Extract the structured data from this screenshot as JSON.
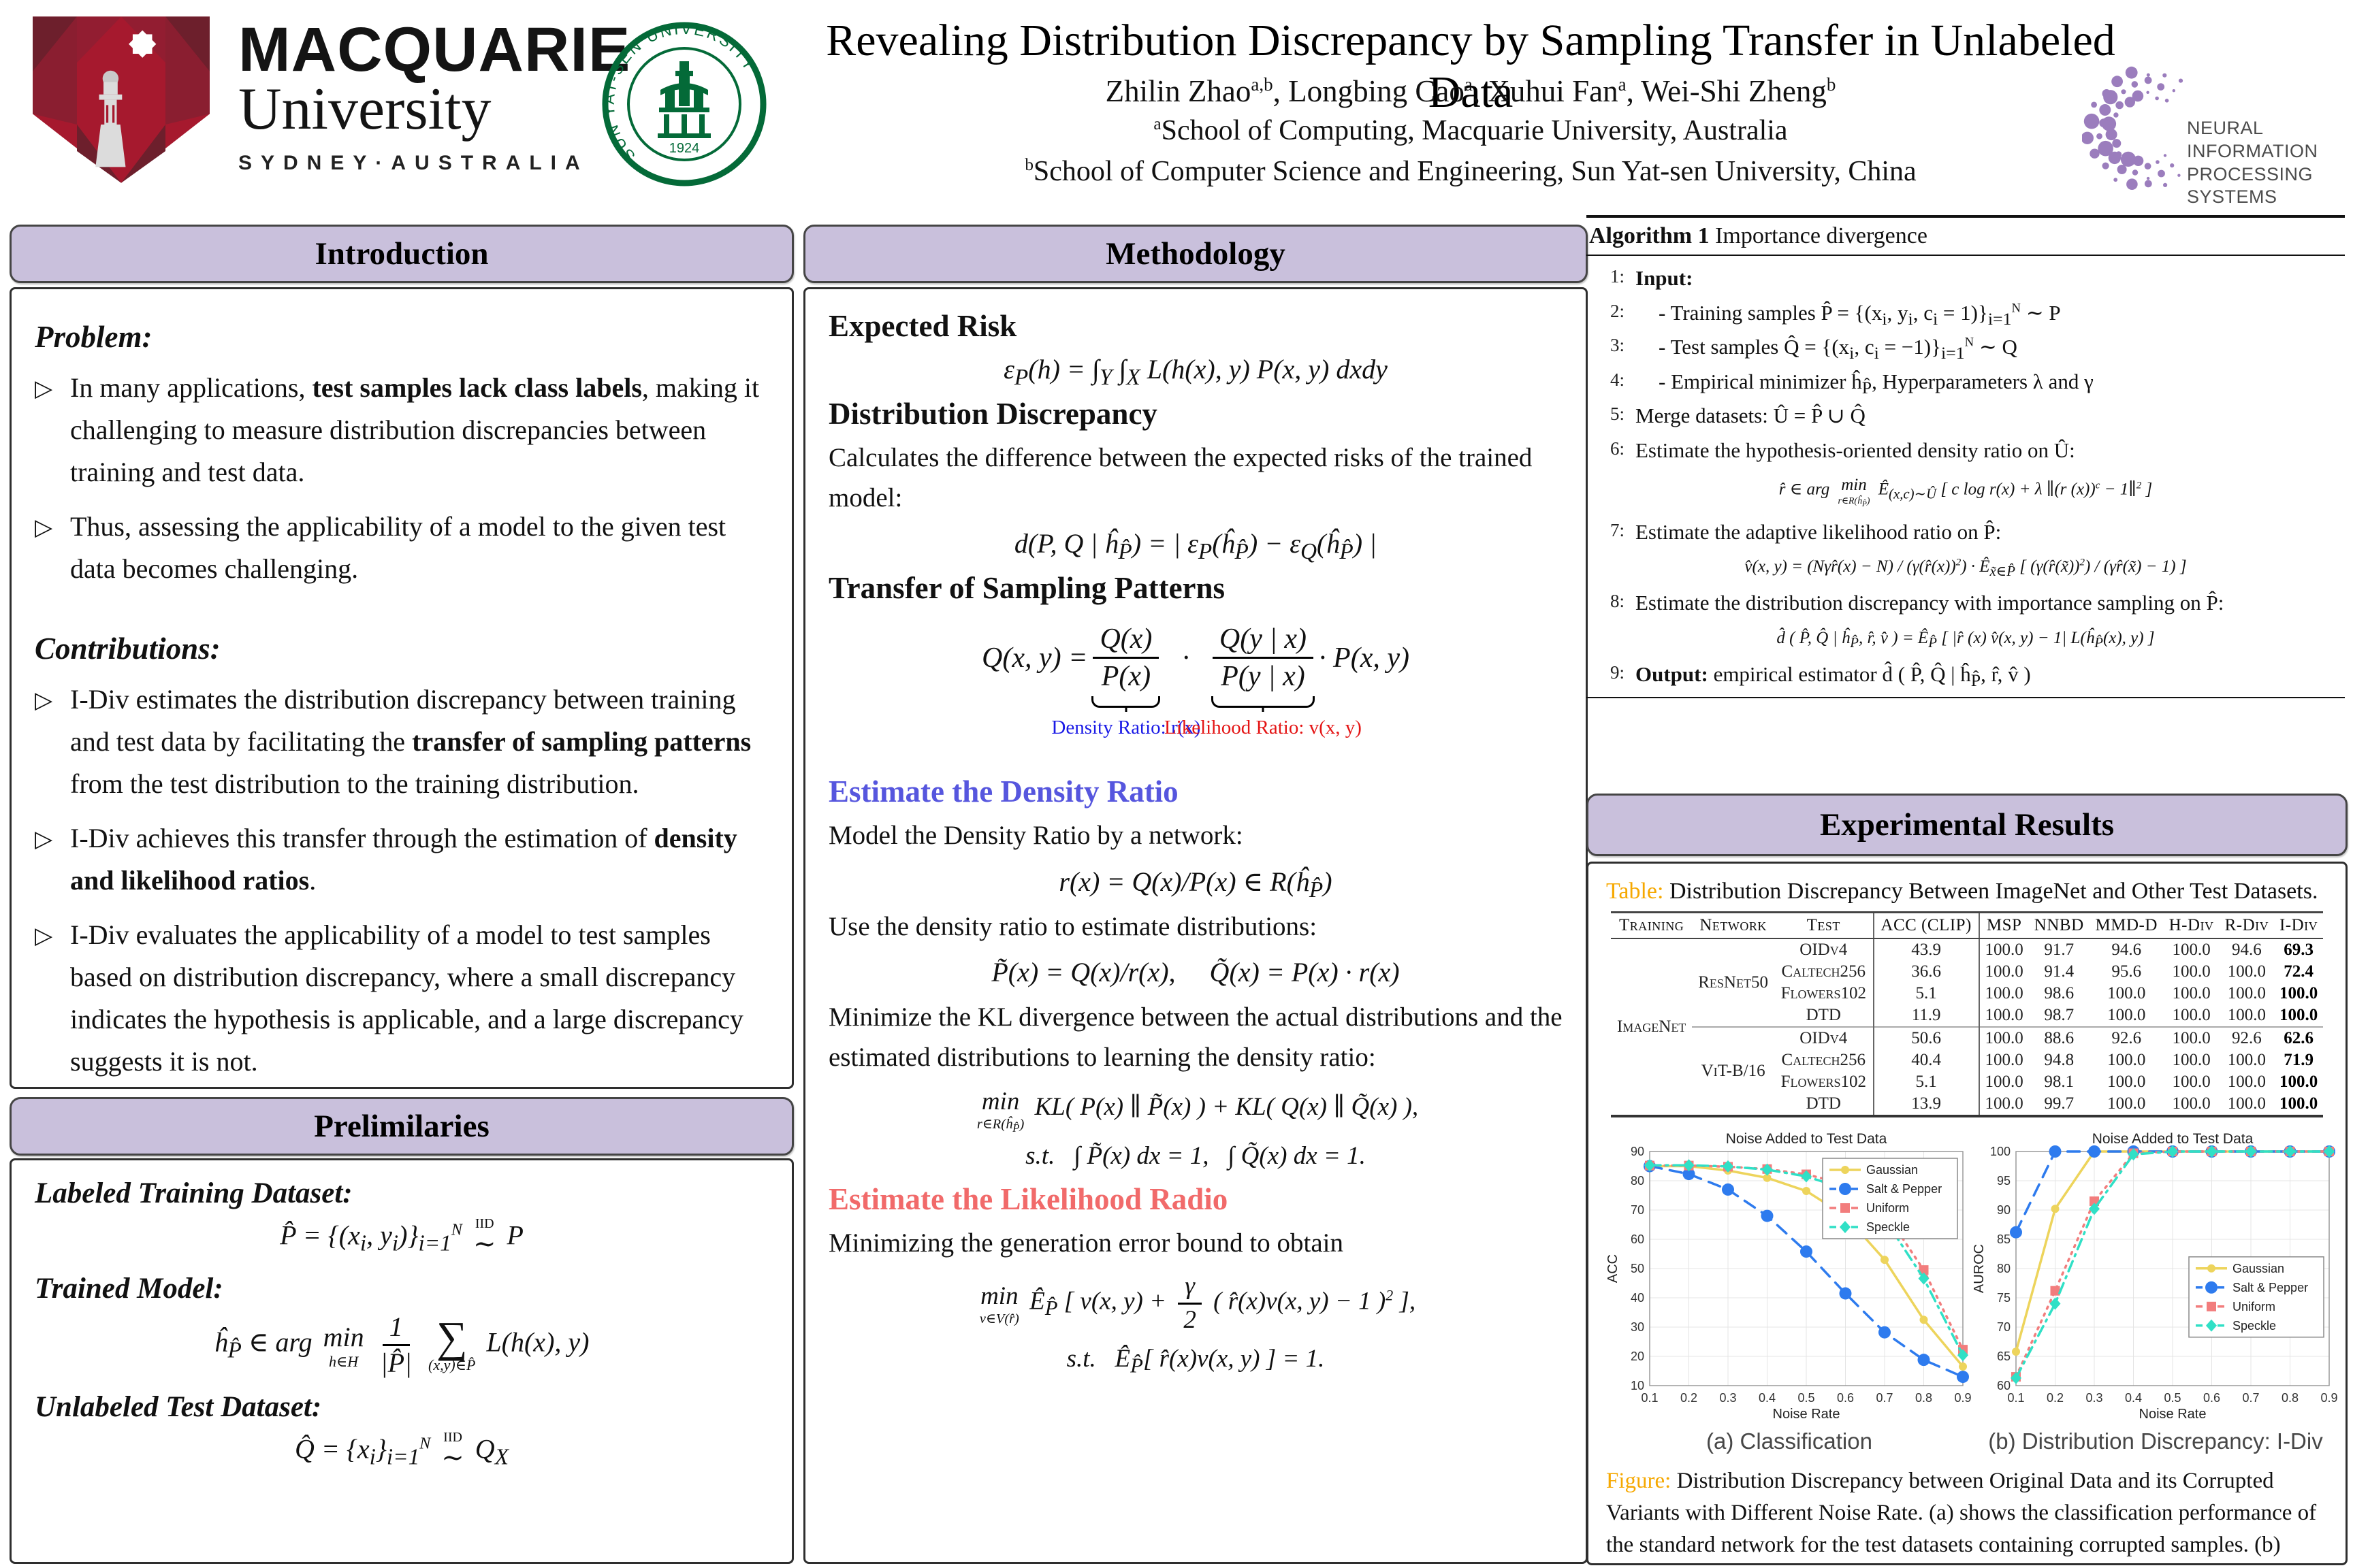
{
  "header": {
    "title": "Revealing Distribution Discrepancy by Sampling Transfer in Unlabeled Data",
    "authors": [
      {
        "t": "Zhilin Zhao"
      },
      {
        "sup": "a,b"
      },
      {
        "t": ", Longbing Cao"
      },
      {
        "sup": "a"
      },
      {
        "t": ", Xuhui Fan"
      },
      {
        "sup": "a"
      },
      {
        "t": ", Wei-Shi Zheng"
      },
      {
        "sup": "b"
      }
    ],
    "affil_a": [
      {
        "sup": "a"
      },
      {
        "t": "School of Computing, Macquarie University, Australia"
      }
    ],
    "affil_b": [
      {
        "sup": "b"
      },
      {
        "t": "School of Computer Science and Engineering, Sun Yat-sen University, China"
      }
    ],
    "macquarie": {
      "line1": "MACQUARIE",
      "line2": "University",
      "line3": "SYDNEY·AUSTRALIA",
      "brand_red": "#a6192e",
      "brand_dark": "#6d1f2c"
    },
    "sysu": {
      "name": "SUN YAT-SEN UNIVERSITY",
      "year": "1924",
      "green": "#046a38"
    },
    "neurips": {
      "line1": "NEURAL INFORMATION",
      "line2": "PROCESSING SYSTEMS",
      "purple": "#9b7dbd"
    }
  },
  "sections": {
    "introduction": "Introduction",
    "methodology": "Methodology",
    "preliminaries": "Prelimilaries",
    "experimental": "Experimental Results"
  },
  "intro": {
    "problem_heading": "Problem:",
    "problem_bullets": [
      [
        {
          "t": "In many applications, "
        },
        {
          "t": "test samples lack class labels",
          "b": 1
        },
        {
          "t": ", making it challenging to measure distribution discrepancies between training and test data."
        }
      ],
      [
        {
          "t": "Thus, assessing the applicability of a model to the given test data becomes challenging."
        }
      ]
    ],
    "contrib_heading": "Contributions:",
    "contrib_bullets": [
      [
        {
          "t": "I-Div estimates the distribution discrepancy between training and test data by facilitating the "
        },
        {
          "t": "transfer of sampling patterns",
          "b": 1
        },
        {
          "t": " from the test distribution to the training distribution."
        }
      ],
      [
        {
          "t": "I-Div achieves this transfer through the estimation of "
        },
        {
          "t": "density and likelihood ratios",
          "b": 1
        },
        {
          "t": "."
        }
      ],
      [
        {
          "t": "I-Div evaluates the applicability of a model to test samples based on distribution discrepancy, where a small discrepancy indicates the hypothesis is applicable, and a large discrepancy suggests it is not."
        }
      ]
    ]
  },
  "prelim": {
    "label1": "Labeled Training Dataset:",
    "eq1": "P̂ = {(x_{i}, y_{i})}_{i=1}^{N} \\o{IID}{∼} P",
    "label2": "Trained Model:",
    "eq2": "ĥ_{P̂} ∈ arg \\u{min}{h∈H} \\f{1}{|P̂|} \\u{∑}{(x,y)∈P̂} L(h(x), y)",
    "label3": "Unlabeled Test Dataset:",
    "eq3": "Q̂ = {x_{i}}_{i=1}^{N} \\o{IID}{∼} Q_{X}"
  },
  "method": {
    "h_risk": "Expected Risk",
    "eq_risk": "ε_{P}(h) = ∫_{Y} ∫_{X} L(h(x), y) P(x, y) dxdy",
    "h_disc": "Distribution Discrepancy",
    "t_disc": "Calculates the difference between the expected risks of the trained model:",
    "eq_disc": "d(P, Q | ĥ_{P̂}) = | ε_{P}(ĥ_{P̂}) − ε_{Q}(ĥ_{P̂}) |",
    "h_transfer": "Transfer of Sampling Patterns",
    "transfer": {
      "lhs": "Q(x, y) =",
      "f1num": "Q(x)",
      "f1den": "P(x)",
      "f1label": "Density Ratio: r(x)",
      "f1color": "#1a1ae6",
      "dot": "·",
      "f2num": "Q(y | x)",
      "f2den": "P(y | x)",
      "f2label": "Likelihood Ratio: v(x, y)",
      "f2color": "#e41414",
      "rhs": "· P(x, y)"
    },
    "h_density": "Estimate the Density Ratio",
    "t_model": "Model the Density Ratio by a network:",
    "eq_ratio": "r(x) = Q(x)/P(x) ∈ R(ĥ_{P̂})",
    "t_use": "Use the density ratio to estimate distributions:",
    "eq_tilde": "P̃(x) = Q(x)/r(x),  Q̃(x) = P(x) · r(x)",
    "t_kl": "Minimize the KL divergence between the actual distributions and the estimated distributions to learning the density ratio:",
    "eq_kl": "\\u{min}{r∈R(ĥ_{P̂})} KL( P(x) ∥ P̃(x) ) + KL( Q(x) ∥ Q̃(x) ),",
    "eq_kl_st": "s.t.  ∫ P̃(x) dx = 1,  ∫ Q̃(x) dx = 1.",
    "h_likelihood": "Estimate the Likelihood Radio",
    "t_gen": "Minimizing the generation error bound to obtain",
    "eq_gen": "\\u{min}{v∈V(r̂)} Ê_{P̂} [ v(x, y) + \\f{γ}{2} ( r̂(x)v(x, y) − 1 )^{2} ],",
    "eq_gen_st": "s.t.  Ê_{P̂}[ r̂(x)v(x, y) ] = 1."
  },
  "algorithm": {
    "title_bold": "Algorithm 1",
    "title_rest": " Importance divergence",
    "lines": [
      {
        "n": "1:",
        "math": "\\b{Input:}"
      },
      {
        "n": "2:",
        "ind": 1,
        "math": "- Training samples P̂ = {(x_{i}, y_{i}, c_{i} = 1)}_{i=1}^{N} ∼ P"
      },
      {
        "n": "3:",
        "ind": 1,
        "math": "- Test samples Q̂ = {(x_{i}, c_{i} = −1)}_{i=1}^{N} ∼ Q"
      },
      {
        "n": "4:",
        "ind": 1,
        "math": "- Empirical minimizer ĥ_{P̂}, Hyperparameters λ and γ"
      },
      {
        "n": "5:",
        "math": "Merge datasets: Û = P̂ ∪ Q̂"
      },
      {
        "n": "6:",
        "math": "Estimate the hypothesis-oriented density ratio on Û:"
      },
      {
        "eq": "r̂ ∈ arg \\u{min}{r∈R(ĥ_{P̂})} Ê_{(x,c)∼Û} [ c log r(x) + λ ∥(r (x))^{c} − 1∥^{2} ]"
      },
      {
        "n": "7:",
        "math": "Estimate the adaptive likelihood ratio on P̂:"
      },
      {
        "eq": "v̂(x, y) = (Nγr̂(x) − N) / (γ(r̂(x))^{2}) · Ê_{x̃∈P̂} [ (γ(r̂(x̃))^{2}) / (γr̂(x̃) − 1) ]"
      },
      {
        "n": "8:",
        "math": "Estimate the distribution discrepancy with importance sampling on P̂:"
      },
      {
        "eq": "d̂ ( P̂, Q̂ | ĥ_{P̂}, r̂, v̂ ) = Ê_{P̂} [ |r̂ (x) v̂(x, y) − 1| L(ĥ_{P̂}(x), y) ]"
      },
      {
        "n": "9:",
        "math": "\\b{Output:} empirical estimator d̂ ( P̂, Q̂ | ĥ_{P̂}, r̂, v̂ )"
      }
    ]
  },
  "results": {
    "table_title": [
      {
        "t": "Table:",
        "c": "#f6a800"
      },
      {
        "t": " Distribution Discrepancy Between ImageNet and Other Test Datasets."
      }
    ],
    "columns": [
      "Training",
      "Network",
      "Test",
      "ACC (CLIP)",
      "MSP",
      "NNBD",
      "MMD-D",
      "H-Div",
      "R-Div",
      "I-Div"
    ],
    "training": "ImageNet",
    "groups": [
      {
        "network": "ResNet50",
        "rows": [
          {
            "test": "OIDv4",
            "acc": "43.9",
            "msp": "100.0",
            "nnbd": "91.7",
            "mmdd": "94.6",
            "hdiv": "100.0",
            "rdiv": "94.6",
            "idiv": "69.3"
          },
          {
            "test": "Caltech256",
            "acc": "36.6",
            "msp": "100.0",
            "nnbd": "91.4",
            "mmdd": "95.6",
            "hdiv": "100.0",
            "rdiv": "100.0",
            "idiv": "72.4"
          },
          {
            "test": "Flowers102",
            "acc": "5.1",
            "msp": "100.0",
            "nnbd": "98.6",
            "mmdd": "100.0",
            "hdiv": "100.0",
            "rdiv": "100.0",
            "idiv": "100.0"
          },
          {
            "test": "DTD",
            "acc": "11.9",
            "msp": "100.0",
            "nnbd": "98.7",
            "mmdd": "100.0",
            "hdiv": "100.0",
            "rdiv": "100.0",
            "idiv": "100.0"
          }
        ]
      },
      {
        "network": "ViT-B/16",
        "rows": [
          {
            "test": "OIDv4",
            "acc": "50.6",
            "msp": "100.0",
            "nnbd": "88.6",
            "mmdd": "92.6",
            "hdiv": "100.0",
            "rdiv": "92.6",
            "idiv": "62.6"
          },
          {
            "test": "Caltech256",
            "acc": "40.4",
            "msp": "100.0",
            "nnbd": "94.8",
            "mmdd": "100.0",
            "hdiv": "100.0",
            "rdiv": "100.0",
            "idiv": "71.9"
          },
          {
            "test": "Flowers102",
            "acc": "5.1",
            "msp": "100.0",
            "nnbd": "98.1",
            "mmdd": "100.0",
            "hdiv": "100.0",
            "rdiv": "100.0",
            "idiv": "100.0"
          },
          {
            "test": "DTD",
            "acc": "13.9",
            "msp": "100.0",
            "nnbd": "99.7",
            "mmdd": "100.0",
            "hdiv": "100.0",
            "rdiv": "100.0",
            "idiv": "100.0"
          }
        ]
      }
    ],
    "figure_caption": [
      {
        "t": "Figure:",
        "c": "#f6a800"
      },
      {
        "t": " Distribution Discrepancy between Original Data and its Corrupted Variants with Different Noise Rate. (a) shows the classification performance of the standard network for the test datasets containing corrupted samples. (b) presents the distribution discrepancy in terms of AUROC."
      }
    ]
  },
  "chart_data": [
    {
      "type": "line",
      "title": "Noise Added to Test Data",
      "xlabel": "Noise Rate",
      "ylabel": "ACC",
      "x": [
        0.1,
        0.2,
        0.3,
        0.4,
        0.5,
        0.6,
        0.7,
        0.8,
        0.9
      ],
      "xlim": [
        0.1,
        0.9
      ],
      "ylim": [
        10,
        90
      ],
      "ytick_step": 10,
      "grid": true,
      "legend_pos": "top-right",
      "subcaption": "(a)  Classification",
      "series": [
        {
          "name": "Gaussian",
          "color": "#edd45c",
          "dash": "solid",
          "marker": "circle",
          "values": [
            85,
            85,
            83.5,
            81,
            76.5,
            68,
            53,
            32.5,
            16.5
          ]
        },
        {
          "name": "Salt & Pepper",
          "color": "#2e7bee",
          "dash": "dashed",
          "marker": "circle-big",
          "values": [
            85,
            82.3,
            77,
            68,
            55.8,
            41.5,
            28.2,
            18.8,
            13
          ]
        },
        {
          "name": "Uniform",
          "color": "#f27d7d",
          "dash": "dotted",
          "marker": "square",
          "values": [
            85.2,
            85.2,
            84.8,
            84,
            82.2,
            78.8,
            69.5,
            49.5,
            22.3
          ]
        },
        {
          "name": "Speckle",
          "color": "#30e0c6",
          "dash": "dashdot",
          "marker": "diamond",
          "values": [
            85.3,
            85.3,
            84.9,
            83.8,
            81.5,
            77.2,
            67,
            46.6,
            20.4
          ]
        }
      ]
    },
    {
      "type": "line",
      "title": "Noise Added to Test Data",
      "xlabel": "Noise Rate",
      "ylabel": "AUROC",
      "x": [
        0.1,
        0.2,
        0.3,
        0.4,
        0.5,
        0.6,
        0.7,
        0.8,
        0.9
      ],
      "xlim": [
        0.1,
        0.9
      ],
      "ylim": [
        60,
        100
      ],
      "ytick_step": 5,
      "grid": true,
      "legend_pos": "mid-right",
      "subcaption": "(b)  Distribution Discrepancy:  I-Div",
      "series": [
        {
          "name": "Gaussian",
          "color": "#edd45c",
          "dash": "solid",
          "marker": "circle",
          "values": [
            65.8,
            90.2,
            100,
            100,
            100,
            100,
            100,
            100,
            100
          ]
        },
        {
          "name": "Salt & Pepper",
          "color": "#2e7bee",
          "dash": "dashed",
          "marker": "circle-big",
          "values": [
            86.2,
            100,
            100,
            100,
            100,
            100,
            100,
            100,
            100
          ]
        },
        {
          "name": "Uniform",
          "color": "#f27d7d",
          "dash": "dotted",
          "marker": "square",
          "values": [
            61.5,
            76.2,
            91.5,
            99.7,
            100,
            100,
            100,
            100,
            100
          ]
        },
        {
          "name": "Speckle",
          "color": "#30e0c6",
          "dash": "dashdot",
          "marker": "diamond",
          "values": [
            61.3,
            74,
            90.2,
            99.5,
            100,
            100,
            100,
            100,
            100
          ]
        }
      ]
    }
  ]
}
